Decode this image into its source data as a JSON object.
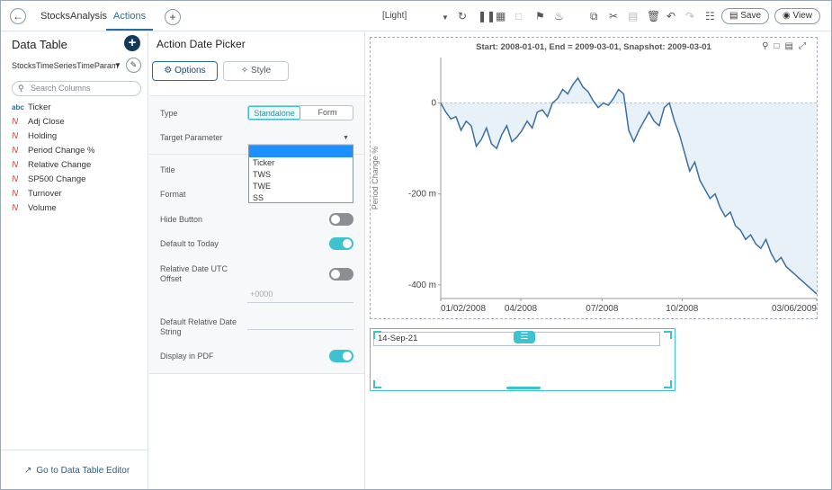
{
  "topbar": {
    "dashboard_name": "StocksAnalysis",
    "active_tab": "Actions",
    "theme": "[Light]",
    "save_label": "Save",
    "view_label": "View"
  },
  "left_panel": {
    "title": "Data Table",
    "datasource": "StocksTimeSeriesTimeParam",
    "search_placeholder": "Search Columns",
    "columns": [
      {
        "type": "text",
        "type_label": "abc",
        "name": "Ticker"
      },
      {
        "type": "numeric",
        "type_label": "N",
        "name": "Adj Close"
      },
      {
        "type": "numeric",
        "type_label": "N",
        "name": "Holding"
      },
      {
        "type": "numeric",
        "type_label": "N",
        "name": "Period Change %"
      },
      {
        "type": "numeric",
        "type_label": "N",
        "name": "Relative Change"
      },
      {
        "type": "numeric",
        "type_label": "N",
        "name": "SP500 Change"
      },
      {
        "type": "numeric",
        "type_label": "N",
        "name": "Turnover"
      },
      {
        "type": "numeric",
        "type_label": "N",
        "name": "Volume"
      }
    ],
    "footer_link": "Go to Data Table Editor"
  },
  "mid_panel": {
    "title": "Action Date Picker",
    "options_label": "Options",
    "style_label": "Style",
    "type_label": "Type",
    "type_options": [
      "Standalone",
      "Form"
    ],
    "type_selected": "Standalone",
    "target_parameter_label": "Target Parameter",
    "target_parameter_options": [
      "",
      "Ticker",
      "TWS",
      "TWE",
      "SS"
    ],
    "title_label": "Title",
    "format_label": "Format",
    "hide_button_label": "Hide Button",
    "hide_button_on": false,
    "default_today_label": "Default to Today",
    "default_today_on": true,
    "utc_offset_label_1": "Relative Date UTC",
    "utc_offset_label_2": "Offset",
    "utc_offset_placeholder": "+0000",
    "utc_offset_on": false,
    "rel_date_label_1": "Default Relative Date",
    "rel_date_label_2": "String",
    "pdf_label": "Display in PDF",
    "pdf_on": true
  },
  "picker": {
    "value": "14-Sep-21"
  },
  "colors": {
    "accent": "#3ec2cf",
    "line": "#3a6fa0",
    "fill": "#e8f0f8"
  },
  "chart_data": {
    "type": "line",
    "title": "Start: 2008-01-01, End = 2009-03-01, Snapshot: 2009-03-01",
    "ylabel": "Period Change %",
    "y_tick_labels": [
      "0",
      "-200 m",
      "-400 m"
    ],
    "y_ticks": [
      0,
      -200,
      -400
    ],
    "x_tick_labels": [
      "01/02/2008",
      "04/2008",
      "07/2008",
      "10/2008",
      "03/06/2009"
    ],
    "x_ticks": [
      0,
      63,
      127,
      190,
      296
    ],
    "ylim": [
      -430,
      100
    ],
    "xlim": [
      0,
      296
    ],
    "series": [
      {
        "x": [
          0,
          4,
          8,
          12,
          16,
          20,
          24,
          28,
          32,
          36,
          40,
          44,
          48,
          52,
          56,
          60,
          64,
          68,
          72,
          76,
          80,
          84,
          88,
          92,
          96,
          100,
          104,
          108,
          112,
          116,
          120,
          124,
          128,
          132,
          136,
          140,
          144,
          148,
          152,
          156,
          160,
          164,
          168,
          172,
          176,
          180,
          184,
          188,
          192,
          196,
          200,
          204,
          208,
          212,
          216,
          220,
          224,
          228,
          232,
          236,
          240,
          244,
          248,
          252,
          256,
          260,
          264,
          268,
          272,
          276,
          280,
          284,
          288,
          292,
          296
        ],
        "values": [
          0,
          -20,
          -35,
          -30,
          -60,
          -40,
          -50,
          -95,
          -80,
          -55,
          -90,
          -100,
          -70,
          -50,
          -85,
          -75,
          -60,
          -40,
          -55,
          -20,
          -15,
          -30,
          0,
          10,
          30,
          20,
          40,
          55,
          35,
          25,
          5,
          -10,
          0,
          -5,
          10,
          30,
          20,
          -60,
          -85,
          -60,
          -40,
          -20,
          -40,
          -50,
          -10,
          0,
          -40,
          -70,
          -110,
          -150,
          -130,
          -170,
          -190,
          -210,
          -200,
          -230,
          -250,
          -240,
          -270,
          -280,
          -300,
          -290,
          -310,
          -320,
          -300,
          -330,
          -350,
          -340,
          -360,
          -370,
          -380,
          -390,
          -400,
          -410,
          -420
        ]
      }
    ]
  }
}
